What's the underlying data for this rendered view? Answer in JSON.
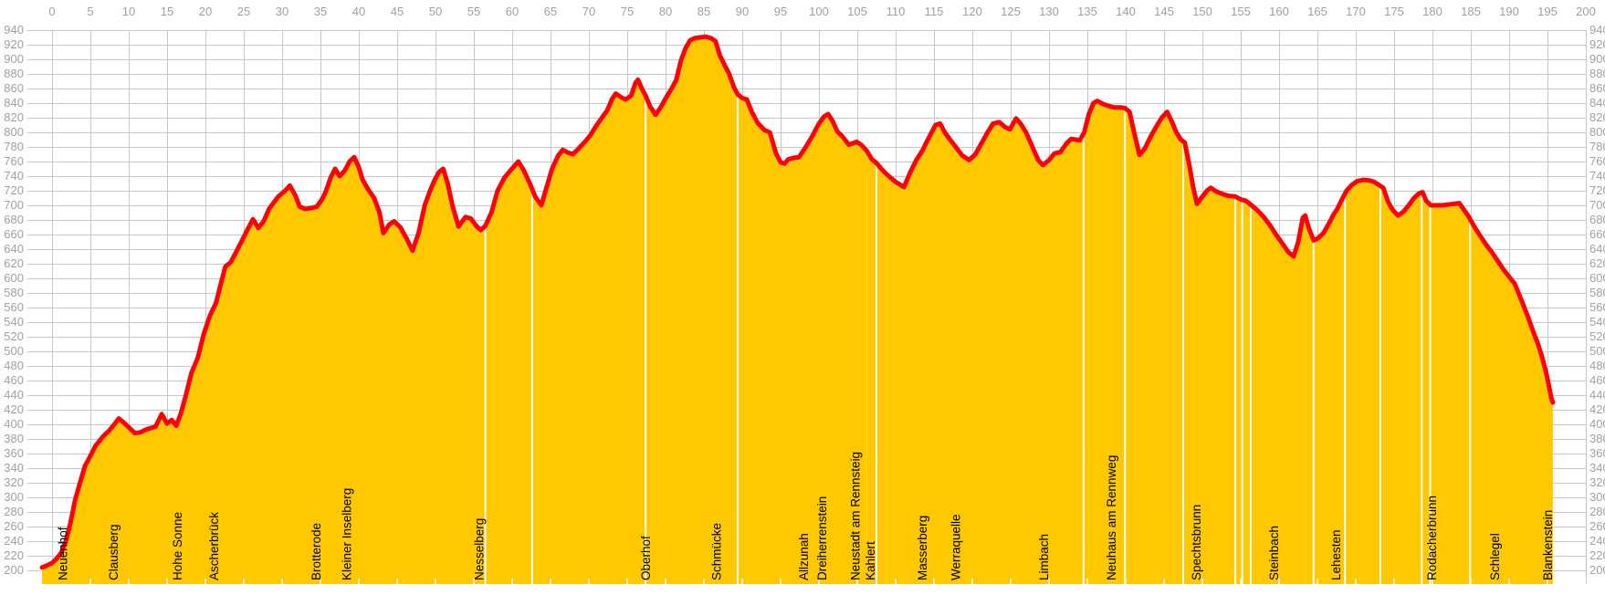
{
  "chart_data": {
    "type": "area",
    "title": "",
    "xlabel": "",
    "ylabel": "",
    "x_axis": {
      "min": 0,
      "max": 200,
      "tick_step": 5,
      "tick_labels_position": "top"
    },
    "y_axis": {
      "min": 200,
      "max": 940,
      "tick_step": 20,
      "labels_on_left": true,
      "labels_on_right": true
    },
    "grid": {
      "horizontal": true,
      "vertical": true
    },
    "legend": "none",
    "colors": {
      "area_fill": "#FFC800",
      "line": "#FF0000",
      "grid": "#C8C8C8",
      "axis_text": "#A0A0A0",
      "waypoint_text": "#000000",
      "divider_line": "#FFFFFF",
      "background": "#FFFFFF"
    },
    "profile_points_km_m": [
      [
        -1.3,
        204
      ],
      [
        -0.6,
        207
      ],
      [
        0,
        210
      ],
      [
        0.6,
        216
      ],
      [
        1.2,
        224
      ],
      [
        1.8,
        240
      ],
      [
        2.4,
        265
      ],
      [
        3.0,
        296
      ],
      [
        3.7,
        322
      ],
      [
        4.3,
        343
      ],
      [
        4.9,
        355
      ],
      [
        5.7,
        371
      ],
      [
        6.7,
        384
      ],
      [
        7.5,
        392
      ],
      [
        8.2,
        401
      ],
      [
        8.7,
        408
      ],
      [
        9.4,
        402
      ],
      [
        10.2,
        394
      ],
      [
        10.8,
        388
      ],
      [
        11.5,
        389
      ],
      [
        12.3,
        393
      ],
      [
        13.5,
        397
      ],
      [
        14.3,
        414
      ],
      [
        15.0,
        401
      ],
      [
        15.6,
        406
      ],
      [
        16.2,
        398
      ],
      [
        16.8,
        415
      ],
      [
        17.4,
        438
      ],
      [
        18.2,
        471
      ],
      [
        19.0,
        491
      ],
      [
        19.8,
        524
      ],
      [
        20.6,
        549
      ],
      [
        21.4,
        567
      ],
      [
        22.0,
        592
      ],
      [
        22.6,
        616
      ],
      [
        23.3,
        622
      ],
      [
        24.2,
        640
      ],
      [
        25.4,
        665
      ],
      [
        26.2,
        681
      ],
      [
        26.9,
        669
      ],
      [
        27.6,
        678
      ],
      [
        28.3,
        695
      ],
      [
        29.5,
        712
      ],
      [
        30.4,
        720
      ],
      [
        31.0,
        727
      ],
      [
        31.7,
        714
      ],
      [
        32.3,
        698
      ],
      [
        33.0,
        695
      ],
      [
        33.7,
        696
      ],
      [
        34.5,
        698
      ],
      [
        35.2,
        708
      ],
      [
        35.7,
        719
      ],
      [
        36.3,
        737
      ],
      [
        36.9,
        750
      ],
      [
        37.5,
        740
      ],
      [
        38.2,
        748
      ],
      [
        38.8,
        760
      ],
      [
        39.4,
        766
      ],
      [
        40.0,
        752
      ],
      [
        40.5,
        735
      ],
      [
        41.2,
        722
      ],
      [
        42.0,
        710
      ],
      [
        42.7,
        690
      ],
      [
        43.2,
        662
      ],
      [
        44.0,
        674
      ],
      [
        44.6,
        678
      ],
      [
        45.4,
        670
      ],
      [
        46.2,
        655
      ],
      [
        47.0,
        638
      ],
      [
        47.8,
        662
      ],
      [
        48.6,
        700
      ],
      [
        49.3,
        720
      ],
      [
        49.9,
        735
      ],
      [
        50.5,
        746
      ],
      [
        51.0,
        750
      ],
      [
        51.6,
        730
      ],
      [
        52.2,
        700
      ],
      [
        53.0,
        671
      ],
      [
        53.9,
        684
      ],
      [
        54.6,
        682
      ],
      [
        55.3,
        672
      ],
      [
        55.9,
        666
      ],
      [
        56.5,
        672
      ],
      [
        57.3,
        690
      ],
      [
        58.1,
        720
      ],
      [
        59.0,
        738
      ],
      [
        59.8,
        748
      ],
      [
        60.8,
        760
      ],
      [
        61.5,
        748
      ],
      [
        62.3,
        730
      ],
      [
        63.0,
        712
      ],
      [
        63.8,
        700
      ],
      [
        64.5,
        725
      ],
      [
        65.2,
        750
      ],
      [
        66.0,
        768
      ],
      [
        66.6,
        776
      ],
      [
        67.3,
        772
      ],
      [
        67.9,
        770
      ],
      [
        68.6,
        777
      ],
      [
        69.4,
        786
      ],
      [
        70.2,
        796
      ],
      [
        70.9,
        808
      ],
      [
        71.7,
        820
      ],
      [
        72.4,
        830
      ],
      [
        73.0,
        845
      ],
      [
        73.5,
        853
      ],
      [
        74.2,
        848
      ],
      [
        74.8,
        845
      ],
      [
        75.5,
        850
      ],
      [
        76.1,
        868
      ],
      [
        76.4,
        872
      ],
      [
        76.9,
        860
      ],
      [
        77.4,
        850
      ],
      [
        78.0,
        835
      ],
      [
        78.7,
        824
      ],
      [
        79.4,
        835
      ],
      [
        80.1,
        848
      ],
      [
        80.8,
        860
      ],
      [
        81.4,
        872
      ],
      [
        82.0,
        898
      ],
      [
        82.6,
        915
      ],
      [
        83.2,
        926
      ],
      [
        83.8,
        929
      ],
      [
        84.5,
        930
      ],
      [
        85.2,
        931
      ],
      [
        85.9,
        929
      ],
      [
        86.5,
        925
      ],
      [
        87.1,
        905
      ],
      [
        87.7,
        892
      ],
      [
        88.3,
        880
      ],
      [
        88.9,
        862
      ],
      [
        89.4,
        852
      ],
      [
        90.0,
        847
      ],
      [
        90.6,
        845
      ],
      [
        91.2,
        829
      ],
      [
        92.0,
        813
      ],
      [
        92.9,
        803
      ],
      [
        93.6,
        800
      ],
      [
        94.4,
        771
      ],
      [
        95.0,
        759
      ],
      [
        95.5,
        757
      ],
      [
        96.0,
        763
      ],
      [
        96.7,
        765
      ],
      [
        97.4,
        766
      ],
      [
        98.3,
        780
      ],
      [
        99.2,
        796
      ],
      [
        100.0,
        812
      ],
      [
        100.7,
        822
      ],
      [
        101.2,
        825
      ],
      [
        101.8,
        815
      ],
      [
        102.4,
        801
      ],
      [
        103.0,
        795
      ],
      [
        103.9,
        783
      ],
      [
        104.9,
        787
      ],
      [
        105.5,
        783
      ],
      [
        106.2,
        775
      ],
      [
        106.9,
        763
      ],
      [
        107.5,
        758
      ],
      [
        108.3,
        748
      ],
      [
        109.1,
        740
      ],
      [
        110.0,
        732
      ],
      [
        111.1,
        725
      ],
      [
        111.9,
        745
      ],
      [
        112.7,
        762
      ],
      [
        113.5,
        775
      ],
      [
        114.3,
        792
      ],
      [
        115.2,
        810
      ],
      [
        115.8,
        812
      ],
      [
        116.4,
        800
      ],
      [
        117.1,
        790
      ],
      [
        117.9,
        779
      ],
      [
        118.7,
        768
      ],
      [
        119.6,
        762
      ],
      [
        120.4,
        770
      ],
      [
        121.2,
        785
      ],
      [
        122.0,
        800
      ],
      [
        122.7,
        812
      ],
      [
        123.5,
        814
      ],
      [
        124.3,
        807
      ],
      [
        124.9,
        804
      ],
      [
        125.7,
        819
      ],
      [
        126.3,
        812
      ],
      [
        127.0,
        800
      ],
      [
        127.8,
        781
      ],
      [
        128.6,
        762
      ],
      [
        129.2,
        755
      ],
      [
        130.0,
        762
      ],
      [
        130.7,
        771
      ],
      [
        131.5,
        773
      ],
      [
        132.3,
        785
      ],
      [
        132.9,
        791
      ],
      [
        133.5,
        790
      ],
      [
        134.0,
        789
      ],
      [
        134.6,
        800
      ],
      [
        135.2,
        825
      ],
      [
        135.8,
        840
      ],
      [
        136.3,
        843
      ],
      [
        137.0,
        839
      ],
      [
        137.8,
        836
      ],
      [
        138.6,
        834
      ],
      [
        139.4,
        834
      ],
      [
        139.9,
        833
      ],
      [
        140.5,
        828
      ],
      [
        141.1,
        800
      ],
      [
        141.8,
        769
      ],
      [
        142.5,
        778
      ],
      [
        143.2,
        793
      ],
      [
        144.0,
        808
      ],
      [
        144.7,
        820
      ],
      [
        145.4,
        828
      ],
      [
        146.0,
        815
      ],
      [
        146.6,
        800
      ],
      [
        147.2,
        790
      ],
      [
        147.7,
        786
      ],
      [
        148.3,
        755
      ],
      [
        148.8,
        725
      ],
      [
        149.3,
        702
      ],
      [
        150.0,
        712
      ],
      [
        150.6,
        720
      ],
      [
        151.1,
        724
      ],
      [
        151.8,
        719
      ],
      [
        152.5,
        716
      ],
      [
        153.4,
        713
      ],
      [
        154.3,
        712
      ],
      [
        155.0,
        708
      ],
      [
        155.7,
        706
      ],
      [
        156.4,
        700
      ],
      [
        157.1,
        694
      ],
      [
        158.0,
        684
      ],
      [
        158.8,
        673
      ],
      [
        159.6,
        660
      ],
      [
        160.4,
        648
      ],
      [
        161.2,
        636
      ],
      [
        161.9,
        630
      ],
      [
        162.5,
        650
      ],
      [
        163.1,
        683
      ],
      [
        163.4,
        686
      ],
      [
        163.9,
        668
      ],
      [
        164.5,
        652
      ],
      [
        165.1,
        655
      ],
      [
        165.8,
        662
      ],
      [
        166.5,
        675
      ],
      [
        167.1,
        687
      ],
      [
        167.6,
        695
      ],
      [
        168.2,
        708
      ],
      [
        168.8,
        720
      ],
      [
        169.5,
        728
      ],
      [
        170.2,
        733
      ],
      [
        171.0,
        735
      ],
      [
        171.8,
        734
      ],
      [
        172.4,
        732
      ],
      [
        173.0,
        728
      ],
      [
        173.6,
        724
      ],
      [
        174.2,
        705
      ],
      [
        174.8,
        694
      ],
      [
        175.5,
        686
      ],
      [
        176.2,
        691
      ],
      [
        176.9,
        700
      ],
      [
        177.6,
        710
      ],
      [
        178.2,
        716
      ],
      [
        178.7,
        718
      ],
      [
        179.2,
        706
      ],
      [
        179.8,
        700
      ],
      [
        180.5,
        700
      ],
      [
        181.2,
        700
      ],
      [
        182.0,
        701
      ],
      [
        182.8,
        702
      ],
      [
        183.5,
        703
      ],
      [
        184.1,
        694
      ],
      [
        184.7,
        685
      ],
      [
        185.5,
        670
      ],
      [
        186.3,
        657
      ],
      [
        187.0,
        646
      ],
      [
        187.8,
        635
      ],
      [
        188.5,
        624
      ],
      [
        189.2,
        613
      ],
      [
        190.0,
        602
      ],
      [
        190.7,
        593
      ],
      [
        191.3,
        578
      ],
      [
        191.9,
        562
      ],
      [
        192.5,
        546
      ],
      [
        193.1,
        528
      ],
      [
        193.7,
        512
      ],
      [
        194.3,
        492
      ],
      [
        194.8,
        472
      ],
      [
        195.2,
        452
      ],
      [
        195.5,
        436
      ],
      [
        195.7,
        430
      ]
    ],
    "waypoints": [
      {
        "label": "Neuenhof",
        "km": 1.5
      },
      {
        "label": "Clausberg",
        "km": 8.1
      },
      {
        "label": "Hohe Sonne",
        "km": 16.4
      },
      {
        "label": "Ascherbrück",
        "km": 21.2
      },
      {
        "label": "Brotterode",
        "km": 34.5
      },
      {
        "label": "Kleiner Inselberg",
        "km": 38.5
      },
      {
        "label": "Nesselberg",
        "km": 55.8
      },
      {
        "label": "Oberhof",
        "km": 77.5
      },
      {
        "label": "Schmücke",
        "km": 86.7
      },
      {
        "label": "Allzunah",
        "km": 98.1
      },
      {
        "label": "Dreiherrenstein",
        "km": 100.5
      },
      {
        "label": "Neustadt am Rennsteig",
        "km": 104.8
      },
      {
        "label": "Kahlert",
        "km": 106.8
      },
      {
        "label": "Masserberg",
        "km": 113.6
      },
      {
        "label": "Werraquelle",
        "km": 117.9
      },
      {
        "label": "Limbach",
        "km": 129.4
      },
      {
        "label": "Neuhaus am Rennweg",
        "km": 138.2
      },
      {
        "label": "Spechtsbrunn",
        "km": 149.3
      },
      {
        "label": "Steinbach",
        "km": 159.4
      },
      {
        "label": "Lehesten",
        "km": 167.5
      },
      {
        "label": "Rodacherbrunn",
        "km": 180.0
      },
      {
        "label": "Schlegel",
        "km": 188.2
      },
      {
        "label": "Blankenstein",
        "km": 195.1
      }
    ],
    "divider_lines_km": [
      56.5,
      62.6,
      77.4,
      89.4,
      107.5,
      134.5,
      139.9,
      147.5,
      154.3,
      155.2,
      156.3,
      164.5,
      168.6,
      173.2,
      178.6,
      179.7,
      184.9
    ]
  }
}
